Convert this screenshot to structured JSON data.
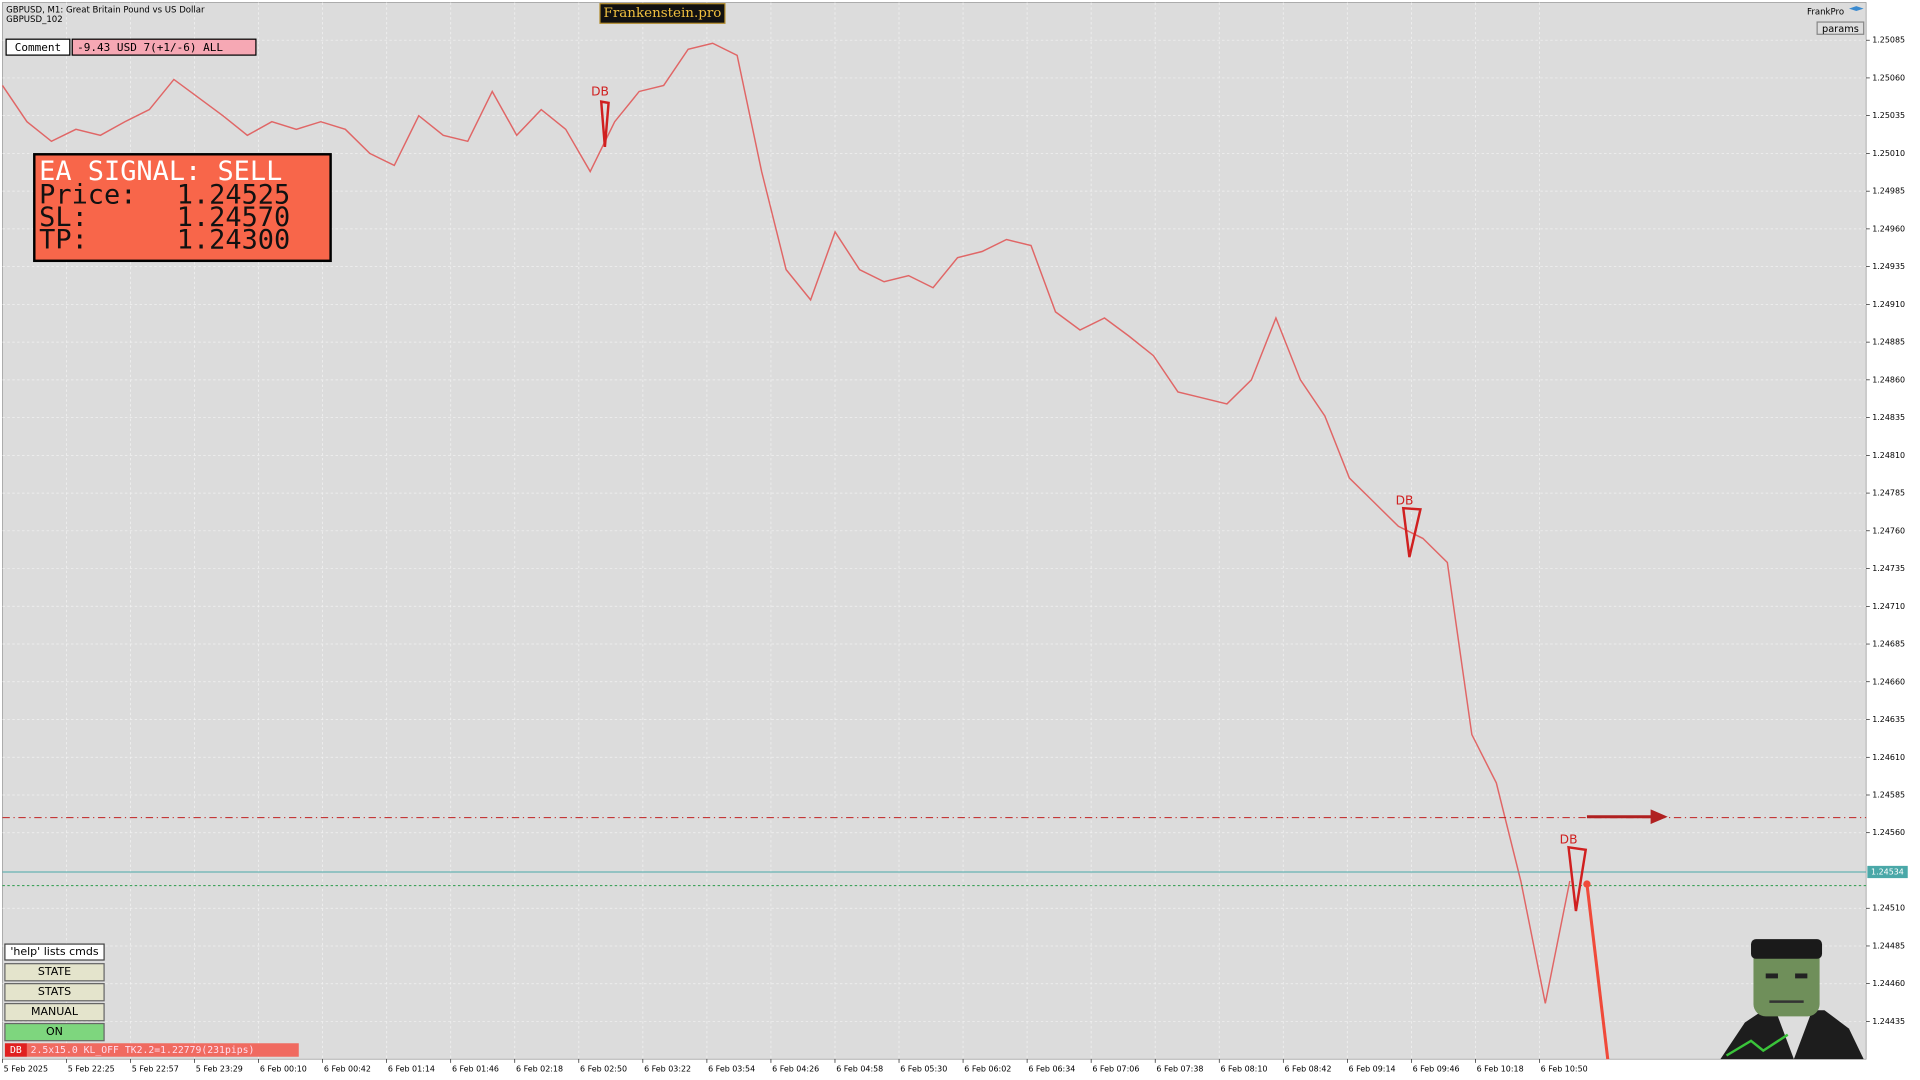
{
  "header": {
    "symbol": "GBPUSD, M1:  Great Britain Pound vs US Dollar",
    "account": "GBPUSD_102",
    "brand": "Frankenstein.pro",
    "expert": "FrankPro",
    "params": "params"
  },
  "comment": {
    "label": "Comment",
    "value": "-9.43 USD 7(+1/-6) ALL"
  },
  "signal": {
    "title": "EA SIGNAL: SELL",
    "rows": [
      {
        "name": "Price:",
        "value": 1.24525,
        "label": "1.24525"
      },
      {
        "name": "SL:",
        "value": 1.2457,
        "label": "1.24570"
      },
      {
        "name": "TP:",
        "value": 1.243,
        "label": "1.24300"
      }
    ]
  },
  "controls": {
    "help": "'help' lists cmds",
    "buttons": [
      "STATE",
      "STATS",
      "MANUAL",
      "ON"
    ],
    "status_tag": "DB",
    "status": "2.5x15.0 KL_OFF TK2.2=1.22779(231pips)"
  },
  "chart_data": {
    "type": "line",
    "color": "#e06666",
    "values": [
      1.25055,
      1.25031,
      1.25018,
      1.25026,
      1.25022,
      1.25031,
      1.25039,
      1.25059,
      1.25047,
      1.25035,
      1.25022,
      1.25031,
      1.25026,
      1.25031,
      1.25026,
      1.2501,
      1.25002,
      1.25035,
      1.25022,
      1.25018,
      1.25051,
      1.25022,
      1.25039,
      1.25026,
      1.24998,
      1.25031,
      1.25051,
      1.25055,
      1.25079,
      1.25083,
      1.25075,
      1.24998,
      1.24933,
      1.24913,
      1.24958,
      1.24933,
      1.24925,
      1.24929,
      1.24921,
      1.24941,
      1.24945,
      1.24953,
      1.24949,
      1.24905,
      1.24893,
      1.24901,
      1.24889,
      1.24876,
      1.24852,
      1.24848,
      1.24844,
      1.2486,
      1.24901,
      1.2486,
      1.24836,
      1.24795,
      1.24779,
      1.24763,
      1.24755,
      1.24739,
      1.24625,
      1.24593,
      1.24528,
      1.24447,
      1.24528
    ],
    "ylim": [
      1.2441,
      1.2511
    ],
    "yticks": [
      1.25085,
      {
        "value": 1.2506,
        "label": "1.25060"
      },
      1.25035,
      {
        "value": 1.2501,
        "label": "1.25010"
      },
      1.24985,
      {
        "value": 1.2496,
        "label": "1.24960"
      },
      1.24935,
      {
        "value": 1.2491,
        "label": "1.24910"
      },
      1.24885,
      {
        "value": 1.2486,
        "label": "1.24860"
      },
      1.24835,
      {
        "value": 1.2481,
        "label": "1.24810"
      },
      1.24785,
      {
        "value": 1.2476,
        "label": "1.24760"
      },
      1.24735,
      {
        "value": 1.2471,
        "label": "1.24710"
      },
      1.24685,
      {
        "value": 1.2466,
        "label": "1.24660"
      },
      1.24635,
      {
        "value": 1.2461,
        "label": "1.24610"
      },
      1.24585,
      {
        "value": 1.2456,
        "label": "1.24560"
      },
      {
        "value": 1.2451,
        "label": "1.24510"
      },
      1.24485,
      {
        "value": 1.2446,
        "label": "1.24460"
      },
      1.24435
    ],
    "current_price": 1.24534,
    "time_labels": [
      "5 Feb 2025",
      "5 Feb 22:25",
      "5 Feb 22:57",
      "5 Feb 23:29",
      "6 Feb 00:10",
      "6 Feb 00:42",
      "6 Feb 01:14",
      "6 Feb 01:46",
      "6 Feb 02:18",
      "6 Feb 02:50",
      "6 Feb 03:22",
      "6 Feb 03:54",
      "6 Feb 04:26",
      "6 Feb 04:58",
      "6 Feb 05:30",
      "6 Feb 06:02",
      "6 Feb 06:34",
      "6 Feb 07:06",
      "6 Feb 07:38",
      "6 Feb 08:10",
      "6 Feb 08:42",
      "6 Feb 09:14",
      "6 Feb 09:46",
      "6 Feb 10:18",
      "6 Feb 10:50"
    ],
    "patterns": [
      "DB",
      "DB",
      "DB"
    ],
    "grid": true
  }
}
